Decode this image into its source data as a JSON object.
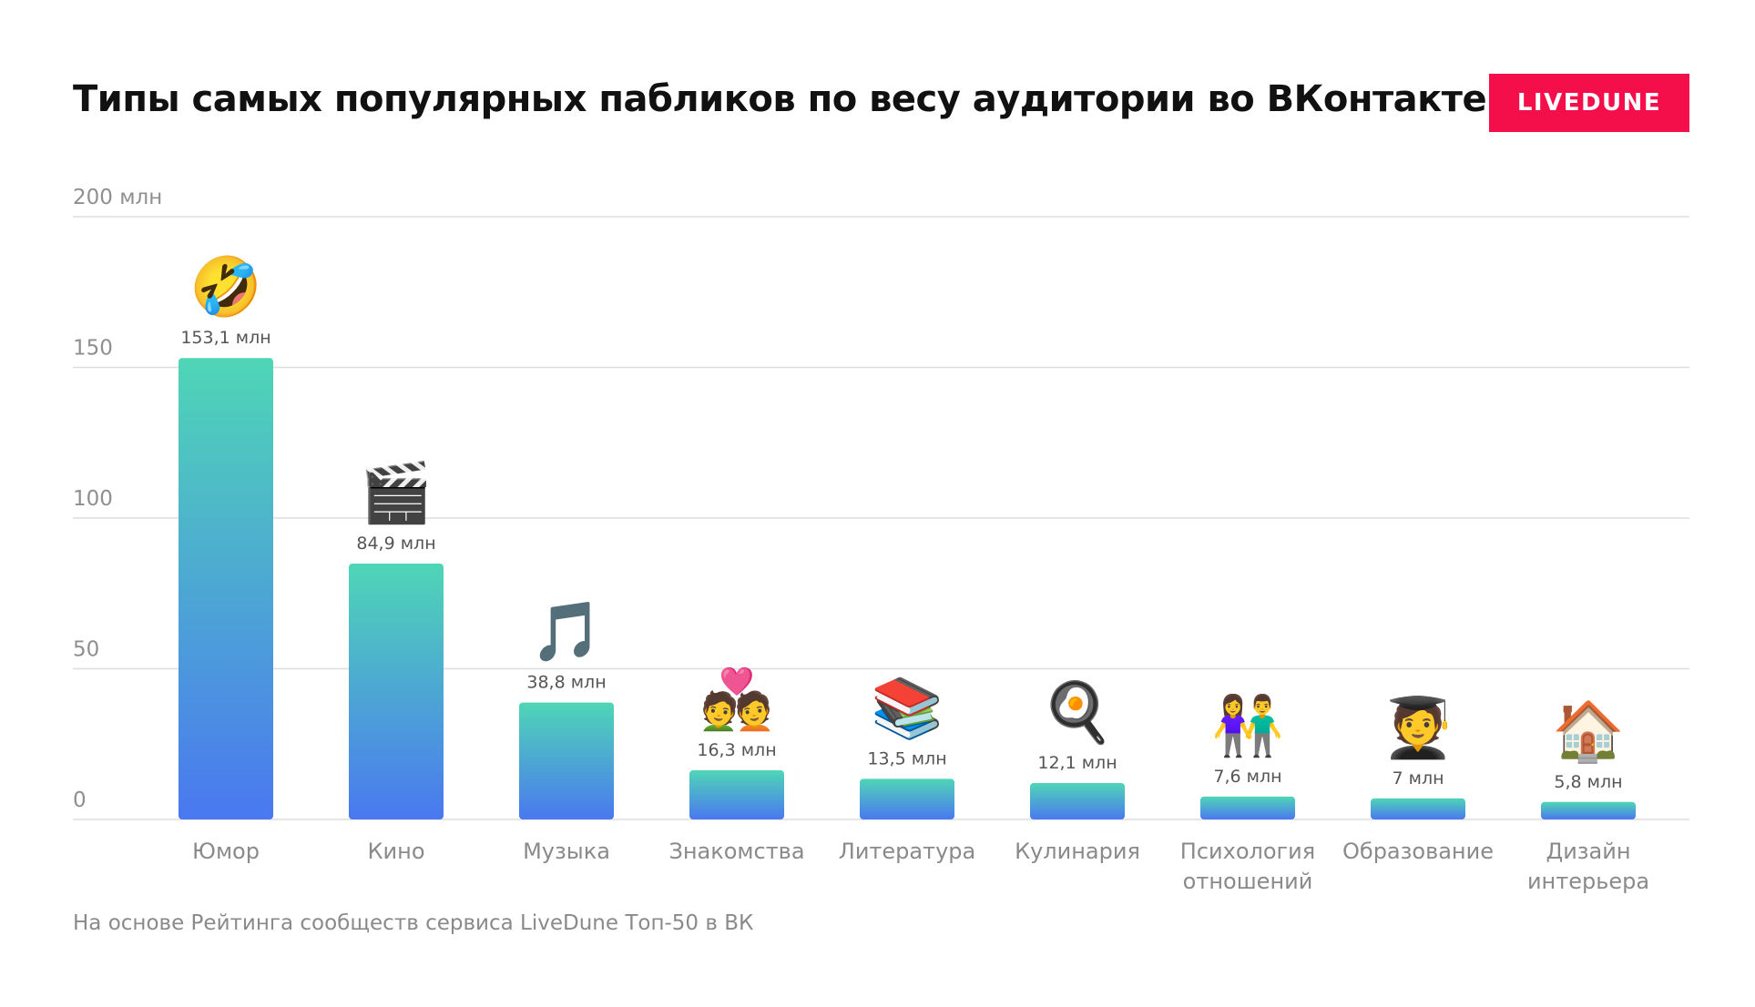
{
  "header": {
    "title": "Типы самых популярных пабликов по весу аудитории во ВКонтакте",
    "brand": "LIVEDUNE",
    "brand_color": "#f40f4b"
  },
  "footnote": "На основе Рейтинга сообществ сервиса LiveDune Топ-50 в ВК",
  "chart_data": {
    "type": "bar",
    "title": "Типы самых популярных пабликов по весу аудитории во ВКонтакте",
    "categories": [
      "Юмор",
      "Кино",
      "Музыка",
      "Знакомства",
      "Литература",
      "Кулинария",
      "Психология отношений",
      "Образование",
      "Дизайн интерьера"
    ],
    "category_lines": [
      [
        "Юмор"
      ],
      [
        "Кино"
      ],
      [
        "Музыка"
      ],
      [
        "Знакомства"
      ],
      [
        "Литература"
      ],
      [
        "Кулинария"
      ],
      [
        "Психология",
        "отношений"
      ],
      [
        "Образование"
      ],
      [
        "Дизайн",
        "интерьера"
      ]
    ],
    "values": [
      153.1,
      84.9,
      38.8,
      16.3,
      13.5,
      12.1,
      7.6,
      7,
      5.8
    ],
    "value_labels": [
      "153,1 млн",
      "84,9 млн",
      "38,8 млн",
      "16,3 млн",
      "13,5 млн",
      "12,1 млн",
      "7,6 млн",
      "7 млн",
      "5,8 млн"
    ],
    "icons": [
      "rolling-laughing-face-icon",
      "clapper-board-icon",
      "music-notes-icon",
      "couple-with-heart-icon",
      "books-icon",
      "frying-pan-egg-icon",
      "couple-holding-hands-icon",
      "student-icon",
      "house-icon"
    ],
    "icon_glyphs": [
      "🤣",
      "🎬",
      "🎵",
      "💑",
      "📚",
      "🍳",
      "👫",
      "🧑‍🎓",
      "🏠"
    ],
    "ylim": [
      0,
      200
    ],
    "yticks": [
      0,
      50,
      100,
      150,
      200
    ],
    "ytick_labels": [
      "0",
      "50",
      "100",
      "150",
      "200 млн"
    ],
    "grid": true,
    "colors": {
      "bar_top": "#4fd6b6",
      "bar_bottom": "#4a78f0",
      "grid": "#dedede"
    }
  }
}
